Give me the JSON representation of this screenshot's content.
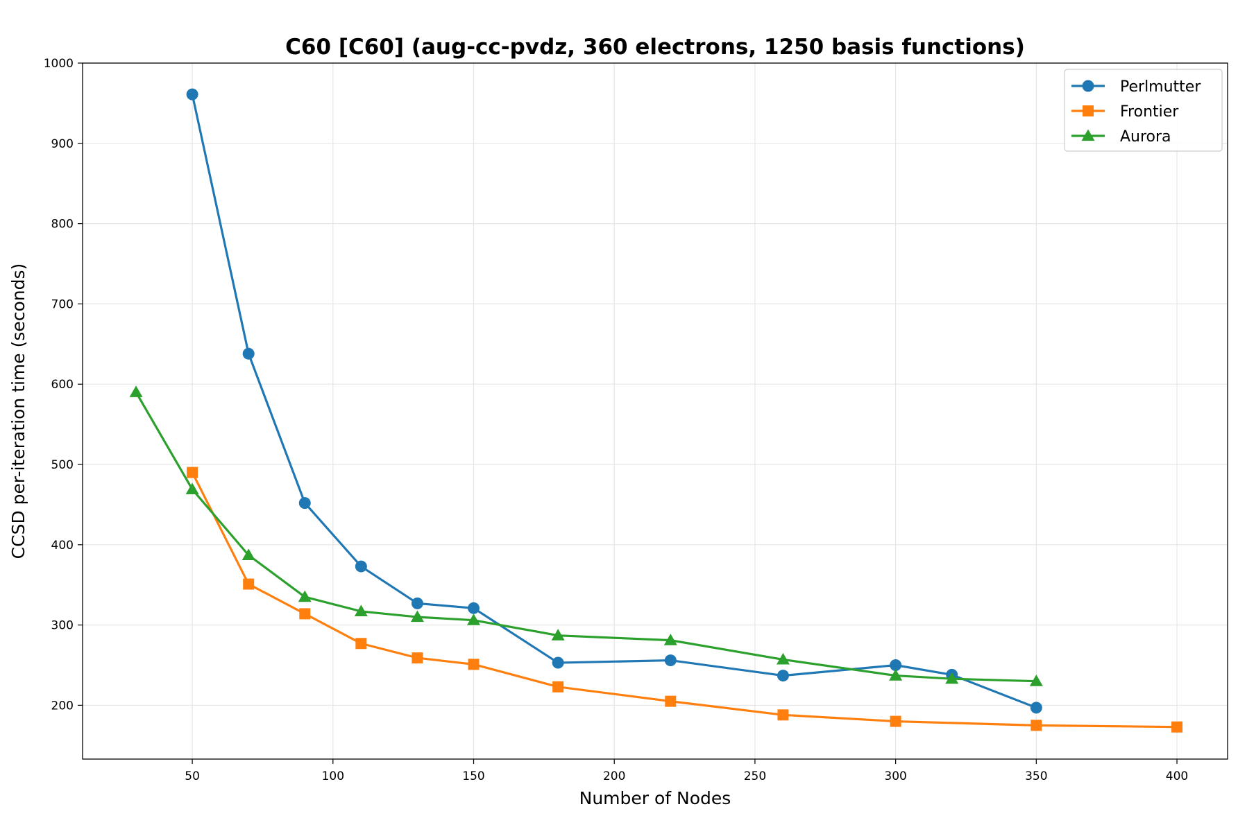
{
  "chart_data": {
    "type": "line",
    "title": "C60 [C60] (aug-cc-pvdz, 360 electrons, 1250 basis functions)",
    "xlabel": "Number of Nodes",
    "ylabel": "CCSD per-iteration time (seconds)",
    "xlim": [
      11,
      418
    ],
    "ylim": [
      133,
      1000
    ],
    "xticks": [
      50,
      100,
      150,
      200,
      250,
      300,
      350,
      400
    ],
    "yticks": [
      200,
      300,
      400,
      500,
      600,
      700,
      800,
      900,
      1000
    ],
    "grid": true,
    "legend_position": "top-right",
    "series": [
      {
        "name": "Perlmutter",
        "color": "#1f77b4",
        "marker": "circle",
        "x": [
          50,
          70,
          90,
          110,
          130,
          150,
          180,
          220,
          260,
          300,
          320,
          350
        ],
        "y": [
          961,
          638,
          452,
          373,
          327,
          321,
          253,
          256,
          237,
          250,
          238,
          197
        ]
      },
      {
        "name": "Frontier",
        "color": "#ff7f0e",
        "marker": "square",
        "x": [
          50,
          70,
          90,
          110,
          130,
          150,
          180,
          220,
          260,
          300,
          350,
          400
        ],
        "y": [
          490,
          351,
          314,
          277,
          259,
          251,
          223,
          205,
          188,
          180,
          175,
          173
        ]
      },
      {
        "name": "Aurora",
        "color": "#2ca02c",
        "marker": "triangle",
        "x": [
          30,
          50,
          70,
          90,
          110,
          130,
          150,
          180,
          220,
          260,
          300,
          320,
          350
        ],
        "y": [
          590,
          469,
          387,
          335,
          317,
          310,
          306,
          287,
          281,
          257,
          237,
          233,
          230
        ]
      }
    ]
  }
}
